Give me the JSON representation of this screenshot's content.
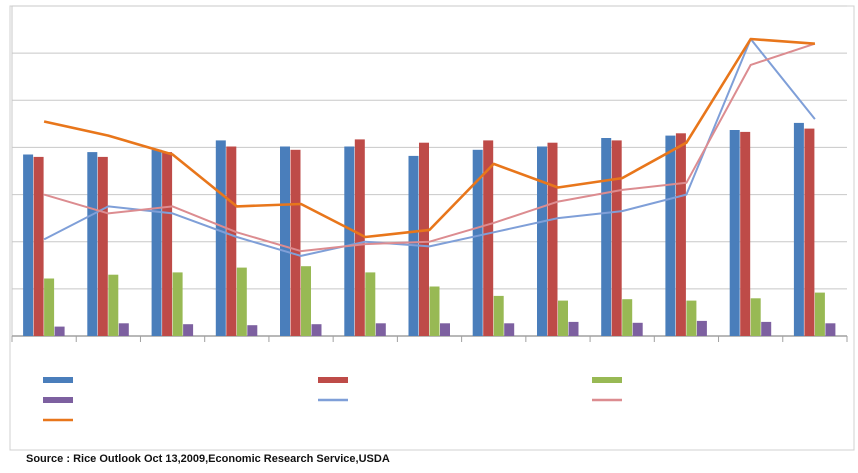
{
  "chart_data": {
    "type": "bar",
    "categories": [
      "",
      "",
      "",
      "",
      "",
      "",
      "",
      "",
      "",
      "",
      "",
      "",
      ""
    ],
    "ylim": [
      0,
      7
    ],
    "grid": true,
    "legend_position": "bottom",
    "series": [
      {
        "kind": "bar",
        "color": "#4a7ebb",
        "values": [
          3.85,
          3.9,
          3.95,
          4.15,
          4.02,
          4.02,
          3.82,
          3.95,
          4.02,
          4.2,
          4.25,
          4.37,
          4.52
        ]
      },
      {
        "kind": "bar",
        "color": "#be4b48",
        "values": [
          3.8,
          3.8,
          3.9,
          4.02,
          3.95,
          4.17,
          4.1,
          4.15,
          4.1,
          4.15,
          4.3,
          4.33,
          4.4
        ]
      },
      {
        "kind": "bar",
        "color": "#98b954",
        "values": [
          1.22,
          1.3,
          1.35,
          1.45,
          1.48,
          1.35,
          1.05,
          0.85,
          0.75,
          0.78,
          0.75,
          0.8,
          0.92
        ]
      },
      {
        "kind": "bar",
        "color": "#7d60a0",
        "values": [
          0.2,
          0.27,
          0.25,
          0.23,
          0.25,
          0.27,
          0.27,
          0.27,
          0.3,
          0.28,
          0.32,
          0.3,
          0.27
        ]
      },
      {
        "kind": "line",
        "color": "#7f9fd8",
        "values": [
          2.05,
          2.75,
          2.6,
          2.1,
          1.7,
          2.0,
          1.9,
          2.2,
          2.5,
          2.65,
          3.0,
          6.3,
          4.6
        ]
      },
      {
        "kind": "line",
        "color": "#dc8c90",
        "values": [
          3.0,
          2.6,
          2.75,
          2.2,
          1.8,
          1.95,
          2.0,
          2.4,
          2.85,
          3.1,
          3.25,
          5.75,
          6.2
        ]
      },
      {
        "kind": "line",
        "color": "#e8761b",
        "values": [
          4.55,
          4.25,
          3.85,
          2.75,
          2.8,
          2.1,
          2.25,
          3.65,
          3.15,
          3.35,
          4.1,
          6.3,
          6.2
        ]
      }
    ]
  },
  "source": "Source : Rice Outlook Oct 13,2009,Economic Research Service,USDA"
}
